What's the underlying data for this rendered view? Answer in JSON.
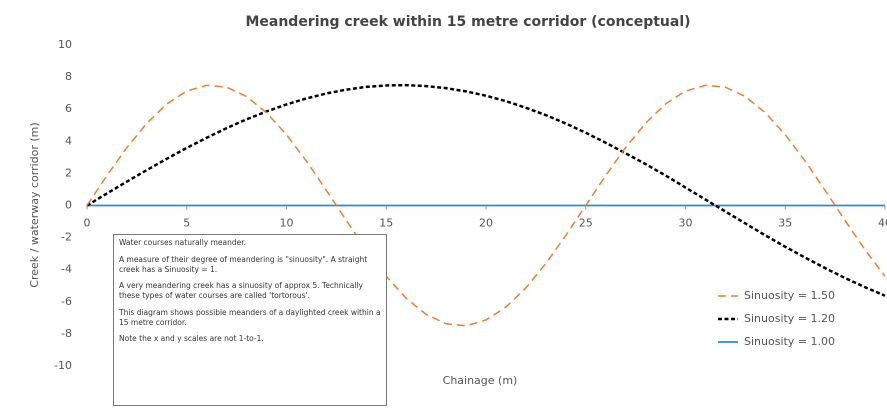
{
  "chart_data": {
    "type": "line",
    "title": "Meandering creek within 15 metre corridor (conceptual)",
    "x_label": "Chainage (m)",
    "y_label": "Creek / waterway corridor (m)",
    "x": [
      0,
      1,
      2,
      3,
      4,
      5,
      6,
      7,
      8,
      9,
      10,
      11,
      12,
      13,
      14,
      15,
      16,
      17,
      18,
      19,
      20,
      21,
      22,
      23,
      24,
      25,
      26,
      27,
      28,
      29,
      30,
      31,
      32,
      33,
      34,
      35,
      36,
      37,
      38,
      39,
      40
    ],
    "series": [
      {
        "name": "Sinuosity = 1.50",
        "color": "#ed7d31",
        "dash": "dashed",
        "values": [
          0,
          1.87,
          3.61,
          5.13,
          6.33,
          7.13,
          7.49,
          7.37,
          6.79,
          5.78,
          4.41,
          2.76,
          0.94,
          -0.94,
          -2.76,
          -4.41,
          -5.78,
          -6.79,
          -7.37,
          -7.49,
          -7.13,
          -6.33,
          -5.13,
          -3.61,
          -1.87,
          0,
          1.87,
          3.61,
          5.13,
          6.33,
          7.13,
          7.49,
          7.37,
          6.79,
          5.78,
          4.41,
          2.76,
          0.94,
          -0.94,
          -2.76,
          -4.41
        ]
      },
      {
        "name": "Sinuosity = 1.20",
        "color": "#000000",
        "dash": "dotted",
        "values": [
          0,
          0.75,
          1.49,
          2.21,
          2.91,
          3.59,
          4.22,
          4.82,
          5.37,
          5.86,
          6.3,
          6.67,
          6.98,
          7.22,
          7.39,
          7.48,
          7.5,
          7.44,
          7.31,
          7.11,
          6.84,
          6.5,
          6.09,
          5.63,
          5.11,
          4.53,
          3.91,
          3.25,
          2.58,
          1.87,
          1.12,
          0.37,
          -0.37,
          -1.12,
          -1.86,
          -2.57,
          -3.25,
          -3.9,
          -4.52,
          -5.09,
          -5.62
        ]
      },
      {
        "name": "Sinuosity = 1.00",
        "color": "#2e8bd6",
        "dash": "solid",
        "values": [
          0,
          0,
          0,
          0,
          0,
          0,
          0,
          0,
          0,
          0,
          0,
          0,
          0,
          0,
          0,
          0,
          0,
          0,
          0,
          0,
          0,
          0,
          0,
          0,
          0,
          0,
          0,
          0,
          0,
          0,
          0,
          0,
          0,
          0,
          0,
          0,
          0,
          0,
          0,
          0,
          0
        ]
      }
    ],
    "xlim": [
      0,
      40
    ],
    "xticks": [
      0,
      5,
      10,
      15,
      20,
      25,
      30,
      35,
      40
    ],
    "ylim": [
      -10,
      10
    ],
    "yticks": [
      -10,
      -8,
      -6,
      -4,
      -2,
      0,
      2,
      4,
      6,
      8,
      10
    ],
    "grid": false,
    "legend": "lower right",
    "annotation": [
      "Water courses naturally meander.",
      "A measure of their degree of meandering is \"sinuosity\".  A straight creek has a Sinuosity = 1.",
      "A very meandering creek has a sinuosity of approx 5. Technically these types of water courses are called 'tortorous'.",
      "This diagram shows possible meanders of a daylighted creek within a 15 metre corridor.",
      "Note the x and y scales are not 1-to-1."
    ]
  }
}
